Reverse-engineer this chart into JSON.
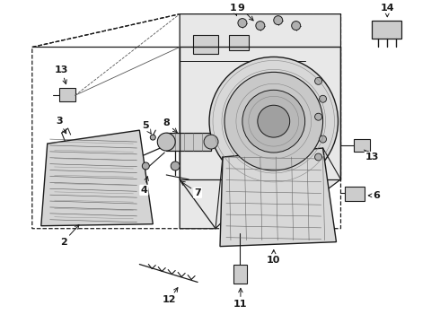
{
  "bg_color": "#ffffff",
  "line_color": "#1a1a1a",
  "fig_width": 4.9,
  "fig_height": 3.6,
  "dpi": 100,
  "label_fs": 8,
  "lw_main": 0.9,
  "lw_thin": 0.5
}
